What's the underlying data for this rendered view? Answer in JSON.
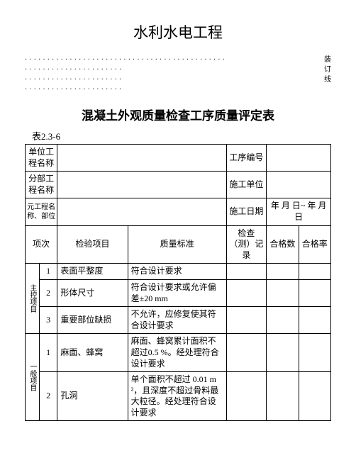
{
  "main_title": "水利水电工程",
  "binding_labels": {
    "zhuang": "装",
    "ding": "订",
    "xian": "线"
  },
  "sub_title": "混凝土外观质量检查工序质量评定表",
  "table_label": "表2.3-6",
  "header_rows": {
    "r1": {
      "label": "单位工程名称",
      "val": "",
      "label2": "工序编号",
      "val2": ""
    },
    "r2": {
      "label": "分部工程名称",
      "val": "",
      "label2": "施工单位",
      "val2": ""
    },
    "r3": {
      "label": "元工程名称、部位",
      "val": "",
      "label2": "施工日期",
      "val2": "年 月 日~ 年 月 日"
    }
  },
  "col_headers": {
    "xiangci": "项次",
    "jianyan": "检验项目",
    "zhiliang": "质量标准",
    "jiancha": "检查（测）记录",
    "hegeshu": "合格数",
    "hegelv": "合格率"
  },
  "group_labels": {
    "main": "主控项目",
    "general": "一般项目"
  },
  "rows": [
    {
      "group": "main",
      "num": "1",
      "item": "表面平整度",
      "std": "符合设计要求"
    },
    {
      "group": "main",
      "num": "2",
      "item": "形体尺寸",
      "std": "符合设计要求或允许偏差±20 mm"
    },
    {
      "group": "main",
      "num": "3",
      "item": "重要部位缺损",
      "std": "不允许，应修复使其符合设计要求"
    },
    {
      "group": "general",
      "num": "1",
      "item": "麻面、蜂窝",
      "std": "麻面、蜂窝累计面积不超过0.5 %。经处理符合设计要求"
    },
    {
      "group": "general",
      "num": "2",
      "item": "孔洞",
      "std": "单个面积不超过 0.01 m²，且深度不超过骨料最大粒径。经处理符合设计要求"
    }
  ],
  "colors": {
    "text": "#000000",
    "bg": "#ffffff",
    "border": "#000000"
  }
}
